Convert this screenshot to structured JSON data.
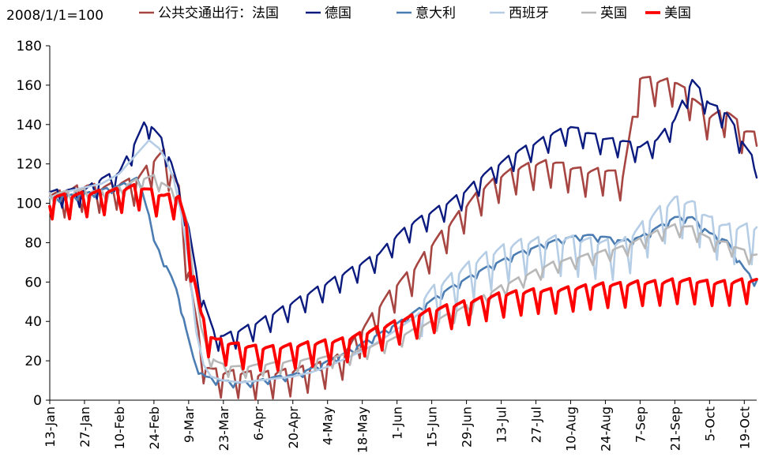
{
  "chart_data": {
    "type": "line",
    "title": "",
    "index_note": "2008/1/1=100",
    "xlabel": "",
    "ylabel": "",
    "ylim": [
      0,
      180
    ],
    "yticks": [
      "0",
      "20",
      "40",
      "60",
      "80",
      "100",
      "120",
      "140",
      "160",
      "180"
    ],
    "xticks": [
      "13-Jan",
      "27-Jan",
      "10-Feb",
      "24-Feb",
      "9-Mar",
      "23-Mar",
      "6-Apr",
      "20-Apr",
      "4-May",
      "18-May",
      "1-Jun",
      "15-Jun",
      "29-Jun",
      "13-Jul",
      "27-Jul",
      "10-Aug",
      "24-Aug",
      "7-Sep",
      "21-Sep",
      "5-Oct",
      "19-Oct"
    ],
    "x_start_day_offset": 0,
    "x_total_days": 285,
    "legend_prefix": "公共交通出行：",
    "series": [
      {
        "name": "法国",
        "color": "#A64541",
        "width": 2.6,
        "points": [
          [
            0,
            100
          ],
          [
            7,
            102
          ],
          [
            14,
            105
          ],
          [
            21,
            104
          ],
          [
            28,
            106
          ],
          [
            35,
            108
          ],
          [
            42,
            118
          ],
          [
            46,
            122
          ],
          [
            49,
            112
          ],
          [
            52,
            104
          ],
          [
            55,
            70
          ],
          [
            58,
            45
          ],
          [
            61,
            22
          ],
          [
            63,
            13
          ],
          [
            66,
            11
          ],
          [
            70,
            10
          ],
          [
            77,
            10
          ],
          [
            84,
            9
          ],
          [
            91,
            10
          ],
          [
            98,
            11
          ],
          [
            105,
            13
          ],
          [
            112,
            15
          ],
          [
            119,
            20
          ],
          [
            126,
            32
          ],
          [
            133,
            44
          ],
          [
            140,
            55
          ],
          [
            147,
            63
          ],
          [
            154,
            75
          ],
          [
            161,
            85
          ],
          [
            168,
            95
          ],
          [
            175,
            104
          ],
          [
            182,
            110
          ],
          [
            189,
            114
          ],
          [
            196,
            116
          ],
          [
            203,
            117
          ],
          [
            210,
            114
          ],
          [
            217,
            112
          ],
          [
            224,
            113
          ],
          [
            231,
            110
          ],
          [
            238,
            160
          ],
          [
            245,
            158
          ],
          [
            252,
            158
          ],
          [
            259,
            150
          ],
          [
            266,
            140
          ],
          [
            273,
            143
          ],
          [
            280,
            133
          ],
          [
            284,
            131
          ]
        ],
        "amp": 9,
        "amp_start": 0
      },
      {
        "name": "德国",
        "color": "#0A1A7E",
        "width": 2.4,
        "points": [
          [
            0,
            103
          ],
          [
            7,
            104
          ],
          [
            14,
            104
          ],
          [
            21,
            110
          ],
          [
            28,
            113
          ],
          [
            35,
            130
          ],
          [
            39,
            140
          ],
          [
            42,
            135
          ],
          [
            46,
            128
          ],
          [
            49,
            118
          ],
          [
            52,
            104
          ],
          [
            56,
            85
          ],
          [
            59,
            62
          ],
          [
            63,
            44
          ],
          [
            66,
            32
          ],
          [
            70,
            30
          ],
          [
            77,
            33
          ],
          [
            84,
            37
          ],
          [
            91,
            42
          ],
          [
            98,
            47
          ],
          [
            105,
            52
          ],
          [
            112,
            57
          ],
          [
            119,
            62
          ],
          [
            126,
            67
          ],
          [
            133,
            72
          ],
          [
            140,
            81
          ],
          [
            147,
            88
          ],
          [
            154,
            93
          ],
          [
            161,
            98
          ],
          [
            168,
            104
          ],
          [
            175,
            112
          ],
          [
            182,
            118
          ],
          [
            189,
            124
          ],
          [
            196,
            128
          ],
          [
            203,
            133
          ],
          [
            210,
            136
          ],
          [
            217,
            133
          ],
          [
            224,
            130
          ],
          [
            231,
            129
          ],
          [
            238,
            126
          ],
          [
            245,
            130
          ],
          [
            252,
            140
          ],
          [
            259,
            160
          ],
          [
            266,
            148
          ],
          [
            273,
            143
          ],
          [
            280,
            127
          ],
          [
            284,
            119
          ]
        ],
        "amp": 6,
        "amp_start": 0
      },
      {
        "name": "意大利",
        "color": "#4B7DB3",
        "width": 2.6,
        "points": [
          [
            0,
            102
          ],
          [
            7,
            103
          ],
          [
            14,
            104
          ],
          [
            21,
            106
          ],
          [
            28,
            108
          ],
          [
            35,
            112
          ],
          [
            39,
            100
          ],
          [
            42,
            80
          ],
          [
            46,
            70
          ],
          [
            49,
            62
          ],
          [
            52,
            52
          ],
          [
            55,
            35
          ],
          [
            58,
            20
          ],
          [
            61,
            13
          ],
          [
            63,
            11
          ],
          [
            66,
            10
          ],
          [
            70,
            9
          ],
          [
            77,
            8
          ],
          [
            84,
            9
          ],
          [
            91,
            11
          ],
          [
            98,
            12
          ],
          [
            105,
            15
          ],
          [
            112,
            19
          ],
          [
            119,
            23
          ],
          [
            126,
            28
          ],
          [
            133,
            33
          ],
          [
            140,
            38
          ],
          [
            147,
            44
          ],
          [
            154,
            50
          ],
          [
            161,
            56
          ],
          [
            168,
            61
          ],
          [
            175,
            66
          ],
          [
            182,
            70
          ],
          [
            189,
            74
          ],
          [
            196,
            77
          ],
          [
            203,
            80
          ],
          [
            210,
            82
          ],
          [
            217,
            83
          ],
          [
            224,
            82
          ],
          [
            231,
            80
          ],
          [
            238,
            82
          ],
          [
            245,
            87
          ],
          [
            252,
            92
          ],
          [
            259,
            92
          ],
          [
            266,
            84
          ],
          [
            273,
            80
          ],
          [
            280,
            66
          ],
          [
            284,
            60
          ]
        ],
        "amp": 2,
        "amp_start": 0
      },
      {
        "name": "西班牙",
        "color": "#B6CDE6",
        "width": 2.6,
        "points": [
          [
            0,
            103
          ],
          [
            7,
            106
          ],
          [
            14,
            108
          ],
          [
            21,
            110
          ],
          [
            28,
            115
          ],
          [
            35,
            125
          ],
          [
            40,
            132
          ],
          [
            44,
            128
          ],
          [
            47,
            122
          ],
          [
            50,
            112
          ],
          [
            53,
            95
          ],
          [
            56,
            70
          ],
          [
            59,
            35
          ],
          [
            62,
            18
          ],
          [
            65,
            12
          ],
          [
            70,
            10
          ],
          [
            77,
            9
          ],
          [
            84,
            10
          ],
          [
            91,
            11
          ],
          [
            98,
            12
          ],
          [
            105,
            14
          ],
          [
            112,
            17
          ],
          [
            119,
            21
          ],
          [
            126,
            25
          ],
          [
            133,
            30
          ],
          [
            140,
            36
          ],
          [
            147,
            42
          ],
          [
            154,
            50
          ],
          [
            161,
            56
          ],
          [
            168,
            62
          ],
          [
            175,
            67
          ],
          [
            182,
            71
          ],
          [
            189,
            74
          ],
          [
            196,
            75
          ],
          [
            203,
            76
          ],
          [
            210,
            76
          ],
          [
            217,
            75
          ],
          [
            224,
            74
          ],
          [
            231,
            74
          ],
          [
            238,
            82
          ],
          [
            245,
            90
          ],
          [
            252,
            96
          ],
          [
            259,
            94
          ],
          [
            266,
            86
          ],
          [
            273,
            82
          ],
          [
            280,
            82
          ],
          [
            284,
            82
          ]
        ],
        "amp": 13,
        "amp_start": 150
      },
      {
        "name": "英国",
        "color": "#B8B8B8",
        "width": 2.6,
        "points": [
          [
            0,
            103
          ],
          [
            7,
            104
          ],
          [
            14,
            105
          ],
          [
            21,
            104
          ],
          [
            28,
            106
          ],
          [
            35,
            110
          ],
          [
            42,
            112
          ],
          [
            46,
            108
          ],
          [
            49,
            105
          ],
          [
            52,
            102
          ],
          [
            55,
            90
          ],
          [
            58,
            65
          ],
          [
            61,
            35
          ],
          [
            64,
            22
          ],
          [
            67,
            18
          ],
          [
            70,
            16
          ],
          [
            77,
            15
          ],
          [
            84,
            16
          ],
          [
            91,
            17
          ],
          [
            98,
            18
          ],
          [
            105,
            19
          ],
          [
            112,
            20
          ],
          [
            119,
            21
          ],
          [
            126,
            24
          ],
          [
            133,
            27
          ],
          [
            140,
            30
          ],
          [
            147,
            34
          ],
          [
            154,
            38
          ],
          [
            161,
            42
          ],
          [
            168,
            46
          ],
          [
            175,
            51
          ],
          [
            182,
            56
          ],
          [
            189,
            60
          ],
          [
            196,
            64
          ],
          [
            203,
            68
          ],
          [
            210,
            70
          ],
          [
            217,
            72
          ],
          [
            224,
            74
          ],
          [
            231,
            76
          ],
          [
            238,
            80
          ],
          [
            245,
            84
          ],
          [
            252,
            87
          ],
          [
            259,
            86
          ],
          [
            266,
            80
          ],
          [
            273,
            78
          ],
          [
            280,
            74
          ],
          [
            284,
            72
          ]
        ],
        "amp": 4,
        "amp_start": 0
      },
      {
        "name": "美国",
        "color": "#FF0000",
        "width": 3.8,
        "points": [
          [
            0,
            100
          ],
          [
            7,
            100
          ],
          [
            14,
            101
          ],
          [
            21,
            102
          ],
          [
            28,
            103
          ],
          [
            35,
            105
          ],
          [
            42,
            102
          ],
          [
            46,
            100
          ],
          [
            49,
            100
          ],
          [
            52,
            100
          ],
          [
            55,
            85
          ],
          [
            58,
            60
          ],
          [
            61,
            40
          ],
          [
            64,
            30
          ],
          [
            67,
            27
          ],
          [
            70,
            26
          ],
          [
            77,
            24
          ],
          [
            84,
            23
          ],
          [
            91,
            23
          ],
          [
            98,
            24
          ],
          [
            105,
            25
          ],
          [
            112,
            26
          ],
          [
            119,
            27
          ],
          [
            126,
            30
          ],
          [
            133,
            33
          ],
          [
            140,
            36
          ],
          [
            147,
            39
          ],
          [
            154,
            42
          ],
          [
            161,
            44
          ],
          [
            168,
            46
          ],
          [
            175,
            48
          ],
          [
            182,
            50
          ],
          [
            189,
            51
          ],
          [
            196,
            52
          ],
          [
            203,
            52
          ],
          [
            210,
            53
          ],
          [
            217,
            54
          ],
          [
            224,
            55
          ],
          [
            231,
            55
          ],
          [
            238,
            56
          ],
          [
            245,
            56
          ],
          [
            252,
            57
          ],
          [
            259,
            57
          ],
          [
            266,
            56
          ],
          [
            273,
            56
          ],
          [
            280,
            57
          ],
          [
            284,
            57
          ]
        ],
        "amp": 8,
        "amp_start": 0
      }
    ]
  }
}
